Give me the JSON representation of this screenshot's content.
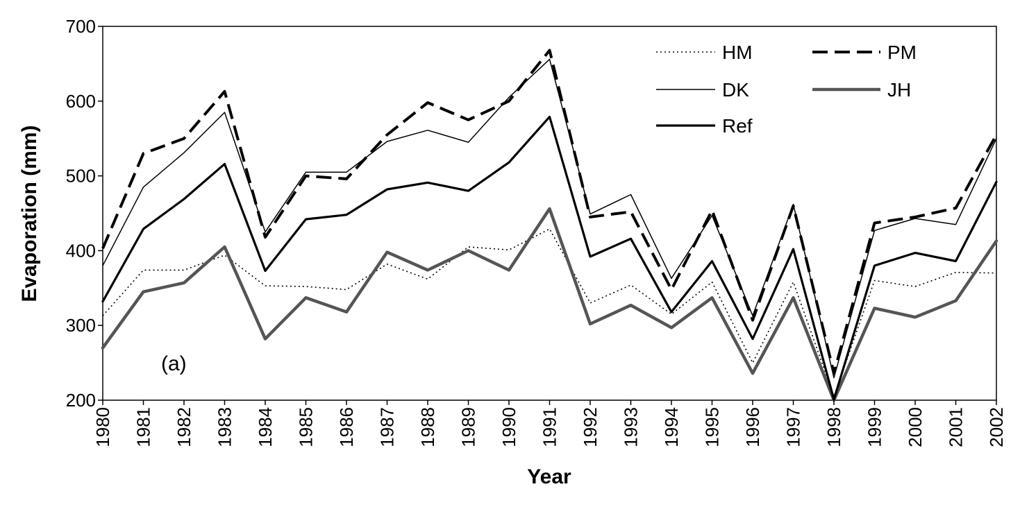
{
  "chart_data": {
    "type": "line",
    "title": "",
    "annotation": "(a)",
    "xlabel": "Year",
    "ylabel": "Evaporation (mm)",
    "ylim": [
      200,
      700
    ],
    "yticks": [
      "200",
      "300",
      "400",
      "500",
      "600",
      "700"
    ],
    "grid": false,
    "legend_position": "top-right",
    "categories": [
      "1980",
      "1981",
      "1982",
      "1983",
      "1984",
      "1985",
      "1986",
      "1987",
      "1988",
      "1989",
      "1990",
      "1991",
      "1992",
      "1993",
      "1994",
      "1995",
      "1996",
      "1997",
      "1998",
      "1999",
      "2000",
      "2001",
      "2002"
    ],
    "series": [
      {
        "name": "HM",
        "style": "dotted",
        "color": "#000000",
        "values": [
          313,
          374,
          374,
          394,
          353,
          352,
          348,
          382,
          362,
          405,
          401,
          429,
          330,
          354,
          315,
          358,
          250,
          358,
          205,
          360,
          352,
          371,
          370
        ]
      },
      {
        "name": "PM",
        "style": "long-dash",
        "color": "#000000",
        "values": [
          403,
          530,
          550,
          613,
          418,
          500,
          496,
          555,
          598,
          575,
          600,
          668,
          445,
          452,
          348,
          454,
          307,
          460,
          236,
          437,
          445,
          457,
          555
        ]
      },
      {
        "name": "DK",
        "style": "thin-solid",
        "color": "#000000",
        "values": [
          380,
          485,
          531,
          585,
          425,
          505,
          505,
          546,
          561,
          545,
          605,
          656,
          449,
          475,
          363,
          447,
          313,
          462,
          230,
          427,
          443,
          435,
          550
        ]
      },
      {
        "name": "JH",
        "style": "thick-gray",
        "color": "#555555",
        "values": [
          270,
          345,
          357,
          405,
          282,
          337,
          318,
          398,
          374,
          400,
          374,
          456,
          302,
          327,
          297,
          337,
          236,
          337,
          200,
          323,
          311,
          333,
          413
        ]
      },
      {
        "name": "Ref",
        "style": "thick-solid",
        "color": "#000000",
        "values": [
          332,
          429,
          469,
          516,
          373,
          442,
          448,
          482,
          491,
          480,
          518,
          579,
          392,
          416,
          318,
          386,
          282,
          402,
          201,
          380,
          397,
          386,
          492
        ]
      }
    ]
  }
}
